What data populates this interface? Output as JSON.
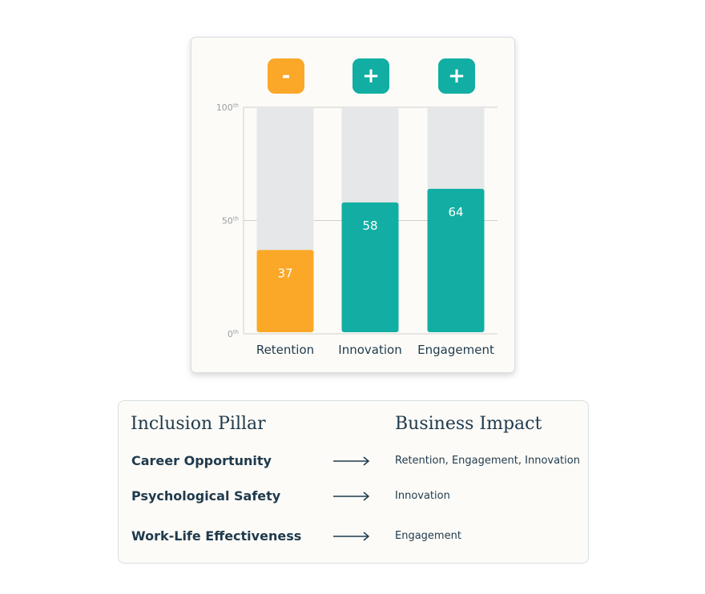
{
  "chart_data": {
    "type": "bar",
    "categories": [
      "Retention",
      "Innovation",
      "Engagement"
    ],
    "values": [
      37,
      58,
      64
    ],
    "ylim": [
      0,
      100
    ],
    "ytick_labels": [
      "100th",
      "50th",
      "0th"
    ],
    "ytick_values": [
      100,
      50,
      0
    ],
    "impact_signs": [
      "-",
      "+",
      "+"
    ],
    "grid": true,
    "colors": {
      "negative": "#fba829",
      "positive": "#12aea3",
      "track": "#e5e7e8",
      "axis": "#cfcfcf"
    }
  },
  "table": {
    "header_pillar": "Inclusion Pillar",
    "header_impact": "Business Impact",
    "rows": [
      {
        "pillar": "Career Opportunity",
        "impact": "Retention, Engagement, Innovation"
      },
      {
        "pillar": "Psychological Safety",
        "impact": "Innovation"
      },
      {
        "pillar": "Work-Life Effectiveness",
        "impact": "Engagement"
      }
    ]
  }
}
